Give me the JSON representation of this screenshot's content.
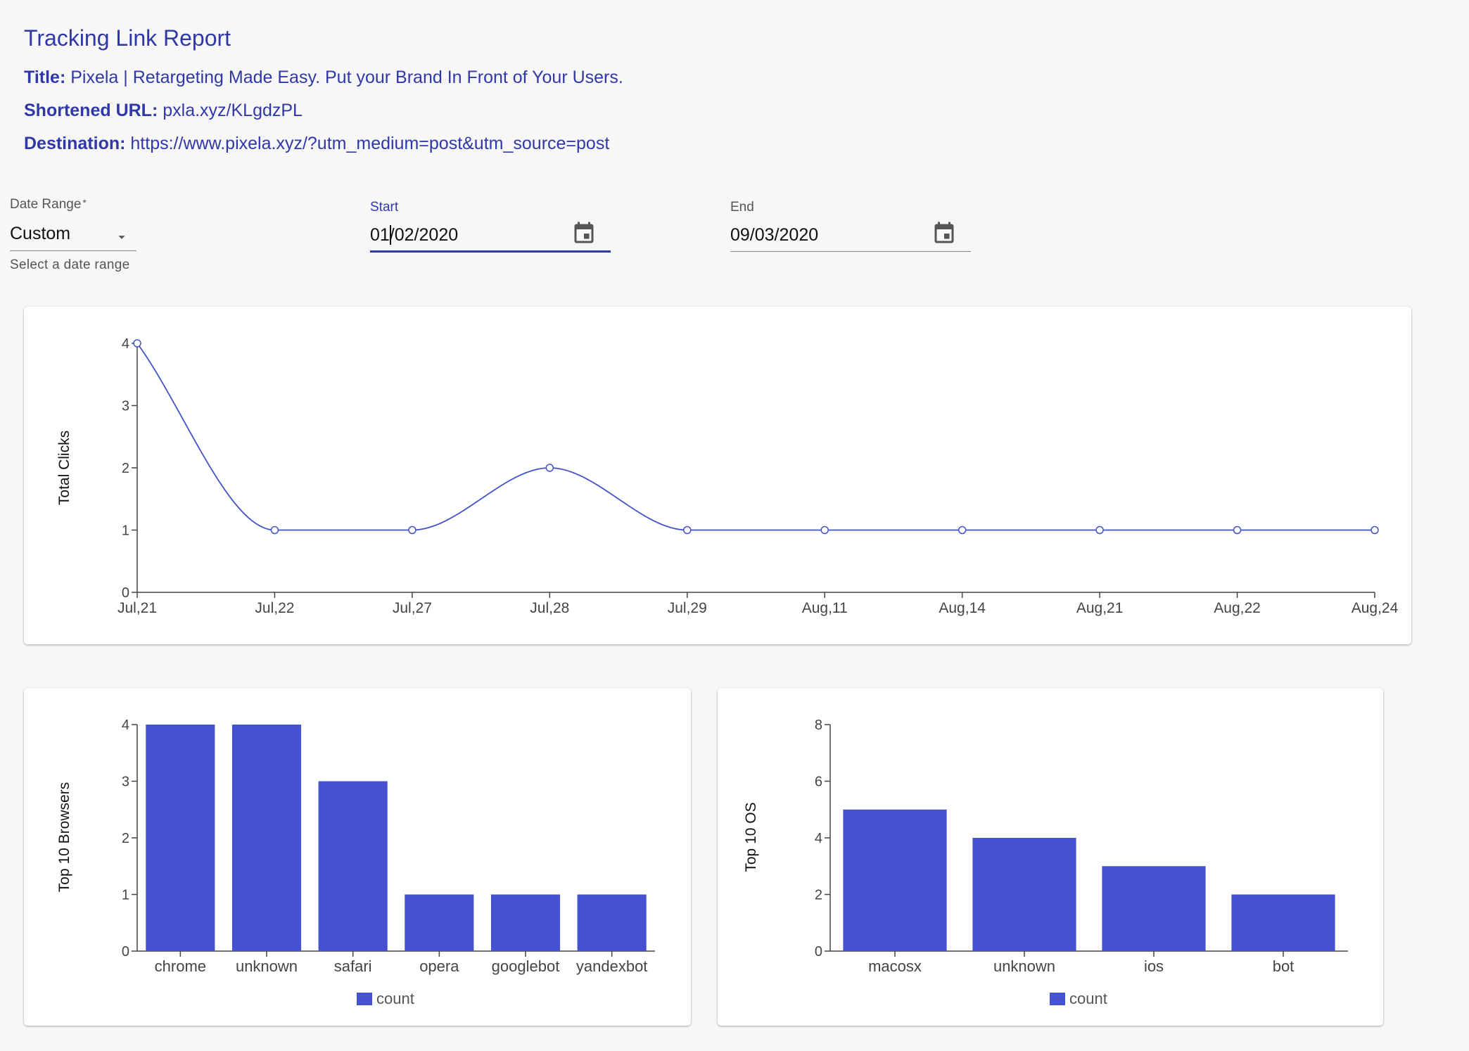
{
  "header": {
    "title": "Tracking Link Report",
    "title_label": "Title:",
    "title_value": "Pixela | Retargeting Made Easy. Put your Brand In Front of Your Users.",
    "short_label": "Shortened URL:",
    "short_value": "pxla.xyz/KLgdzPL",
    "dest_label": "Destination:",
    "dest_value": "https://www.pixela.xyz/?utm_medium=post&utm_source=post"
  },
  "filters": {
    "range_label": "Date Range",
    "range_required": "*",
    "range_value": "Custom",
    "range_helper": "Select a date range",
    "start_label": "Start",
    "start_value": "01/02/2020",
    "end_label": "End",
    "end_value": "09/03/2020"
  },
  "icons": {
    "dropdown": "chevron-down-icon",
    "calendar": "calendar-icon"
  },
  "colors": {
    "accent": "#3038a8",
    "line": "#4452c8",
    "bar": "#4452cf"
  },
  "chart_data": [
    {
      "type": "line",
      "ylabel": "Total Clicks",
      "xlabel": "",
      "categories": [
        "Jul,21",
        "Jul,22",
        "Jul,27",
        "Jul,28",
        "Jul,29",
        "Aug,11",
        "Aug,14",
        "Aug,21",
        "Aug,22",
        "Aug,24"
      ],
      "values": [
        4,
        1,
        1,
        2,
        1,
        1,
        1,
        1,
        1,
        1
      ],
      "ylim": [
        0,
        4
      ],
      "yticks": [
        0,
        1,
        2,
        3,
        4
      ],
      "grid": false
    },
    {
      "type": "bar",
      "ylabel": "Top 10 Browsers",
      "categories": [
        "chrome",
        "unknown",
        "safari",
        "opera",
        "googlebot",
        "yandexbot"
      ],
      "series": [
        {
          "name": "count",
          "values": [
            4,
            4,
            3,
            1,
            1,
            1
          ]
        }
      ],
      "ylim": [
        0,
        4
      ],
      "yticks": [
        0,
        1,
        2,
        3,
        4
      ],
      "legend": "bottom",
      "grid": false
    },
    {
      "type": "bar",
      "ylabel": "Top 10 OS",
      "categories": [
        "macosx",
        "unknown",
        "ios",
        "bot"
      ],
      "series": [
        {
          "name": "count",
          "values": [
            5,
            4,
            3,
            2
          ]
        }
      ],
      "ylim": [
        0,
        8
      ],
      "yticks": [
        0,
        2,
        4,
        6,
        8
      ],
      "legend": "bottom",
      "grid": false
    }
  ]
}
